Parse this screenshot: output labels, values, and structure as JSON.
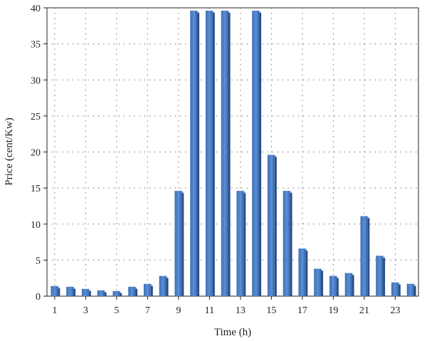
{
  "chart_data": {
    "type": "bar",
    "xlabel": "Time (h)",
    "ylabel": "Price (cent/Kw)",
    "x": [
      1,
      2,
      3,
      4,
      5,
      6,
      7,
      8,
      9,
      10,
      11,
      12,
      13,
      14,
      15,
      16,
      17,
      18,
      19,
      20,
      21,
      22,
      23,
      24
    ],
    "values": [
      1.4,
      1.3,
      1.0,
      0.8,
      0.7,
      1.3,
      1.7,
      2.8,
      14.6,
      39.6,
      39.6,
      39.6,
      14.6,
      39.6,
      19.6,
      14.6,
      6.6,
      3.8,
      2.8,
      3.2,
      11.1,
      5.6,
      1.9,
      1.7
    ],
    "xticks": [
      1,
      3,
      5,
      7,
      9,
      11,
      13,
      15,
      17,
      19,
      21,
      23
    ],
    "yticks": [
      0,
      5,
      10,
      15,
      20,
      25,
      30,
      35,
      40
    ],
    "ylim": [
      0,
      40
    ],
    "grid": true,
    "legend": "none",
    "bar_color": "#4a7cc4",
    "bar_dark_color": "#2a4f88"
  }
}
